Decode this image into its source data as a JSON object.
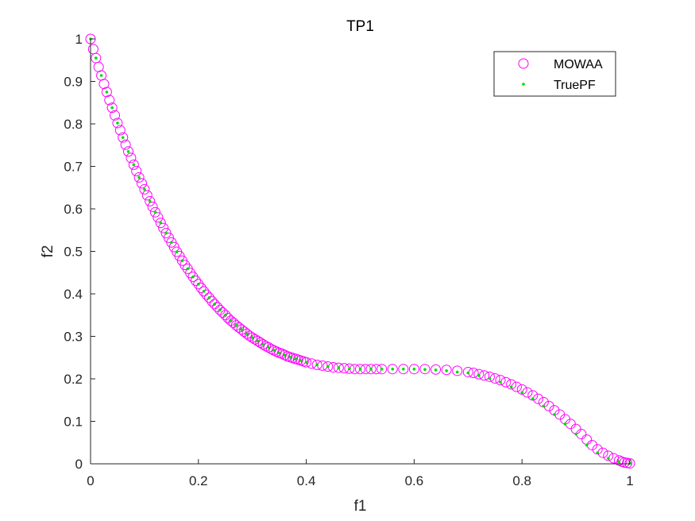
{
  "chart_data": {
    "type": "scatter",
    "title": "TP1",
    "xlabel": "f1",
    "ylabel": "f2",
    "xlim": [
      0,
      1
    ],
    "ylim": [
      0,
      1
    ],
    "xticks": [
      0,
      0.2,
      0.4,
      0.6,
      0.8,
      1
    ],
    "xtick_labels": [
      "0",
      "0.2",
      "0.4",
      "0.6",
      "0.8",
      "1"
    ],
    "yticks": [
      0,
      0.1,
      0.2,
      0.3,
      0.4,
      0.5,
      0.6,
      0.7,
      0.8,
      0.9,
      1
    ],
    "ytick_labels": [
      "0",
      "0.1",
      "0.2",
      "0.3",
      "0.4",
      "0.5",
      "0.6",
      "0.7",
      "0.8",
      "0.9",
      "1"
    ],
    "grid": false,
    "legend_position": "top-right",
    "series": [
      {
        "name": "MOWAA",
        "marker": "open-circle",
        "color": "#FF00FF",
        "x": [
          0.0,
          0.005,
          0.01,
          0.015,
          0.02,
          0.025,
          0.03,
          0.035,
          0.04,
          0.045,
          0.05,
          0.055,
          0.06,
          0.065,
          0.07,
          0.075,
          0.08,
          0.085,
          0.09,
          0.095,
          0.1,
          0.105,
          0.11,
          0.115,
          0.12,
          0.125,
          0.13,
          0.135,
          0.14,
          0.145,
          0.15,
          0.155,
          0.16,
          0.165,
          0.17,
          0.175,
          0.18,
          0.185,
          0.19,
          0.195,
          0.2,
          0.205,
          0.21,
          0.215,
          0.22,
          0.225,
          0.23,
          0.235,
          0.24,
          0.245,
          0.25,
          0.255,
          0.26,
          0.265,
          0.27,
          0.275,
          0.28,
          0.285,
          0.29,
          0.295,
          0.3,
          0.305,
          0.31,
          0.315,
          0.32,
          0.325,
          0.33,
          0.335,
          0.34,
          0.345,
          0.35,
          0.355,
          0.36,
          0.365,
          0.37,
          0.375,
          0.38,
          0.385,
          0.39,
          0.395,
          0.4,
          0.41,
          0.42,
          0.43,
          0.44,
          0.45,
          0.46,
          0.47,
          0.48,
          0.49,
          0.5,
          0.51,
          0.52,
          0.53,
          0.54,
          0.56,
          0.58,
          0.6,
          0.62,
          0.64,
          0.66,
          0.68,
          0.7,
          0.71,
          0.72,
          0.73,
          0.74,
          0.75,
          0.76,
          0.77,
          0.78,
          0.79,
          0.8,
          0.81,
          0.82,
          0.83,
          0.84,
          0.85,
          0.86,
          0.87,
          0.88,
          0.89,
          0.9,
          0.91,
          0.92,
          0.93,
          0.94,
          0.95,
          0.96,
          0.97,
          0.98,
          0.985,
          0.99,
          0.995,
          1.0
        ],
        "y": [
          1.0,
          0.976,
          0.955,
          0.934,
          0.914,
          0.894,
          0.875,
          0.856,
          0.838,
          0.82,
          0.802,
          0.785,
          0.768,
          0.751,
          0.735,
          0.72,
          0.704,
          0.689,
          0.674,
          0.66,
          0.646,
          0.632,
          0.618,
          0.605,
          0.592,
          0.58,
          0.567,
          0.555,
          0.543,
          0.532,
          0.521,
          0.51,
          0.499,
          0.489,
          0.478,
          0.468,
          0.459,
          0.449,
          0.44,
          0.431,
          0.423,
          0.414,
          0.406,
          0.398,
          0.391,
          0.383,
          0.376,
          0.369,
          0.362,
          0.356,
          0.35,
          0.343,
          0.337,
          0.332,
          0.326,
          0.321,
          0.316,
          0.311,
          0.306,
          0.301,
          0.297,
          0.293,
          0.289,
          0.285,
          0.281,
          0.277,
          0.274,
          0.27,
          0.267,
          0.264,
          0.261,
          0.259,
          0.256,
          0.253,
          0.251,
          0.249,
          0.247,
          0.245,
          0.243,
          0.241,
          0.239,
          0.236,
          0.233,
          0.231,
          0.229,
          0.227,
          0.226,
          0.225,
          0.224,
          0.223,
          0.223,
          0.223,
          0.223,
          0.223,
          0.223,
          0.223,
          0.223,
          0.223,
          0.223,
          0.222,
          0.221,
          0.219,
          0.216,
          0.214,
          0.211,
          0.208,
          0.205,
          0.201,
          0.197,
          0.192,
          0.187,
          0.181,
          0.175,
          0.168,
          0.161,
          0.153,
          0.145,
          0.136,
          0.126,
          0.116,
          0.105,
          0.094,
          0.082,
          0.07,
          0.057,
          0.044,
          0.034,
          0.026,
          0.019,
          0.013,
          0.008,
          0.005,
          0.003,
          0.002,
          0.001
        ]
      },
      {
        "name": "TruePF",
        "marker": "dot",
        "color": "#00DD00",
        "x": [
          0.0,
          0.01,
          0.02,
          0.03,
          0.04,
          0.05,
          0.06,
          0.07,
          0.08,
          0.09,
          0.1,
          0.11,
          0.12,
          0.13,
          0.14,
          0.15,
          0.16,
          0.17,
          0.18,
          0.19,
          0.2,
          0.21,
          0.22,
          0.23,
          0.24,
          0.25,
          0.26,
          0.27,
          0.28,
          0.29,
          0.3,
          0.31,
          0.32,
          0.33,
          0.34,
          0.35,
          0.36,
          0.37,
          0.38,
          0.39,
          0.4,
          0.42,
          0.44,
          0.46,
          0.48,
          0.5,
          0.52,
          0.54,
          0.56,
          0.58,
          0.6,
          0.62,
          0.64,
          0.66,
          0.68,
          0.7,
          0.72,
          0.74,
          0.76,
          0.78,
          0.8,
          0.82,
          0.84,
          0.86,
          0.88,
          0.9,
          0.92,
          0.94,
          0.96,
          0.98,
          1.0
        ],
        "y": [
          1.0,
          0.955,
          0.914,
          0.875,
          0.838,
          0.802,
          0.768,
          0.735,
          0.704,
          0.674,
          0.646,
          0.618,
          0.592,
          0.567,
          0.543,
          0.521,
          0.499,
          0.478,
          0.459,
          0.44,
          0.423,
          0.406,
          0.391,
          0.376,
          0.362,
          0.35,
          0.337,
          0.326,
          0.316,
          0.306,
          0.297,
          0.289,
          0.281,
          0.274,
          0.267,
          0.261,
          0.256,
          0.251,
          0.247,
          0.243,
          0.239,
          0.233,
          0.229,
          0.226,
          0.224,
          0.223,
          0.223,
          0.223,
          0.223,
          0.223,
          0.223,
          0.222,
          0.221,
          0.219,
          0.216,
          0.214,
          0.208,
          0.201,
          0.192,
          0.181,
          0.168,
          0.153,
          0.136,
          0.116,
          0.094,
          0.07,
          0.044,
          0.026,
          0.013,
          0.005,
          0.001
        ]
      }
    ]
  }
}
